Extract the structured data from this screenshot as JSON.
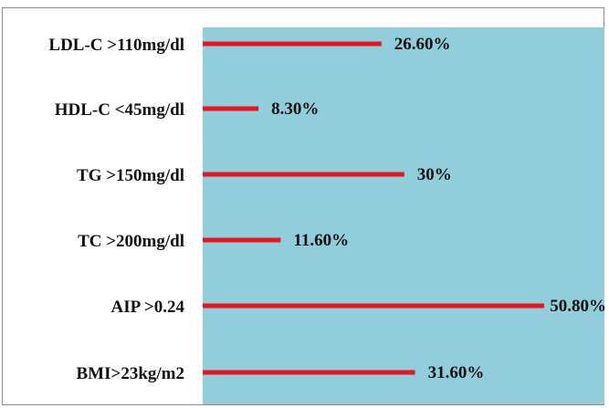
{
  "chart_data": {
    "type": "bar",
    "orientation": "horizontal",
    "title": "",
    "xlabel": "",
    "ylabel": "",
    "categories": [
      "LDL-C >110mg/dl",
      "HDL-C <45mg/dl",
      "TG >150mg/dl",
      "TC >200mg/dl",
      "AIP >0.24",
      "BMI>23kg/m2"
    ],
    "values": [
      26.6,
      8.3,
      30,
      11.6,
      50.8,
      31.6
    ],
    "value_labels": [
      "26.60%",
      "8.30%",
      "30%",
      "11.60%",
      "50.80%",
      "31.60%"
    ],
    "xlim": [
      0,
      53
    ],
    "grid": false,
    "legend": "none",
    "colors": {
      "plot_background": "#92CDDC",
      "bar": "#E8141B",
      "text": "#111111"
    }
  }
}
